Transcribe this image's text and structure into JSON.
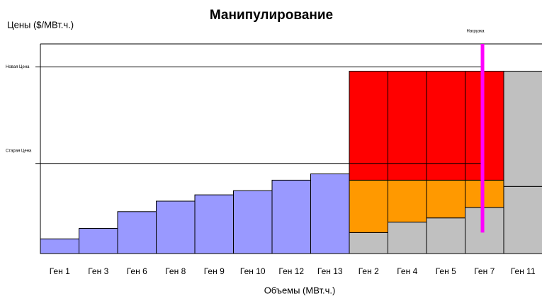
{
  "chart_data": {
    "type": "bar",
    "title": "Манипулирование",
    "y_label": "Цены ($/МВт.ч.)",
    "x_label": "Объемы (МВт.ч.)",
    "categories": [
      "Ген 1",
      "Ген 3",
      "Ген 6",
      "Ген 8",
      "Ген 9",
      "Ген 10",
      "Ген 12",
      "Ген 13",
      "Ген 2",
      "Ген 4",
      "Ген 5",
      "Ген 7",
      "Ген 11"
    ],
    "stacked": true,
    "ylim": [
      0,
      100
    ],
    "series": [
      {
        "color": "#9999ff",
        "values": [
          7,
          12,
          20,
          25,
          28,
          30,
          35,
          38,
          null,
          null,
          null,
          null,
          null
        ]
      },
      {
        "color": "#c0c0c0",
        "values": [
          null,
          null,
          null,
          null,
          null,
          null,
          null,
          null,
          10,
          15,
          17,
          22,
          32
        ]
      },
      {
        "color": "#ff9900",
        "values": [
          null,
          null,
          null,
          null,
          null,
          null,
          null,
          null,
          25,
          20,
          18,
          13,
          null
        ]
      },
      {
        "color": "#ff0000",
        "values": [
          null,
          null,
          null,
          null,
          null,
          null,
          null,
          null,
          52,
          52,
          52,
          52,
          null
        ]
      },
      {
        "color": "#c0c0c0",
        "values": [
          null,
          null,
          null,
          null,
          null,
          null,
          null,
          null,
          null,
          null,
          null,
          null,
          55
        ]
      }
    ],
    "price_lines": [
      {
        "label": "Новая Цена",
        "y": 89
      },
      {
        "label": "Старая Цена",
        "y": 43
      }
    ],
    "load": {
      "label": "Нагрузка",
      "x": 11.45,
      "ymin": 10,
      "ymax": 100,
      "color": "#ff00ff"
    }
  }
}
